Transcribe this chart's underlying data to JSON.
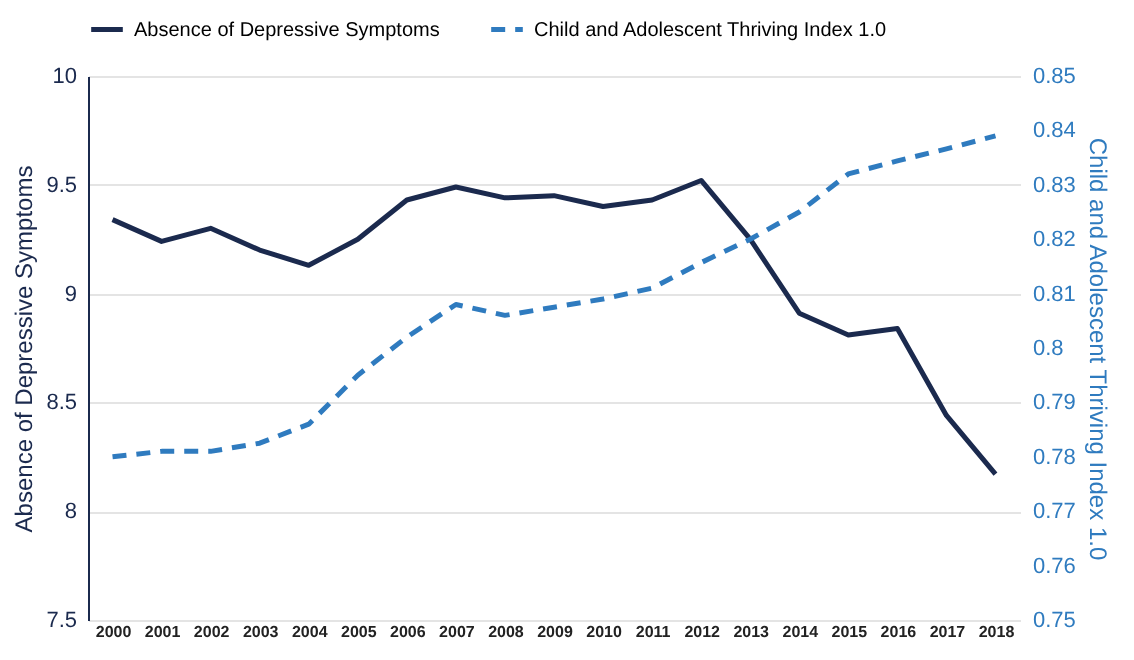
{
  "chart_data": {
    "type": "line",
    "xlabel": null,
    "ylabel": "Absence of Depressive Symptoms",
    "y2label": "Child and Adolescent Thriving Index 1.0",
    "categories": [
      "2000",
      "2001",
      "2002",
      "2003",
      "2004",
      "2005",
      "2006",
      "2007",
      "2008",
      "2009",
      "2010",
      "2011",
      "2012",
      "2013",
      "2014",
      "2015",
      "2016",
      "2017",
      "2018"
    ],
    "series": [
      {
        "name": "Absence of Depressive Symptoms",
        "color": "#1b2a4e",
        "line_style": "solid",
        "values": [
          9.34,
          9.24,
          9.3,
          9.2,
          9.13,
          9.25,
          9.43,
          9.49,
          9.44,
          9.45,
          9.4,
          9.43,
          9.52,
          9.25,
          8.91,
          8.81,
          8.84,
          8.44,
          8.17
        ]
      },
      {
        "name": "Child and Adolescent Thriving Index 1.0",
        "color": "#2f7bbf",
        "line_style": "dashed",
        "axis": "y2",
        "values": [
          0.78,
          0.781,
          0.781,
          0.7825,
          0.786,
          0.795,
          0.802,
          0.808,
          0.806,
          0.8075,
          0.809,
          0.811,
          0.8157,
          0.82,
          0.825,
          0.832,
          0.8344,
          0.8366,
          0.839
        ]
      }
    ],
    "ylim": [
      7.5,
      10
    ],
    "yticks": [
      7.5,
      8,
      8.5,
      9,
      9.5,
      10
    ],
    "y2lim": [
      0.75,
      0.85
    ],
    "y2ticks": [
      0.75,
      0.76,
      0.77,
      0.78,
      0.79,
      0.8,
      0.81,
      0.82,
      0.83,
      0.84,
      0.85
    ],
    "grid": "y",
    "legend": "top",
    "marker": "none"
  }
}
